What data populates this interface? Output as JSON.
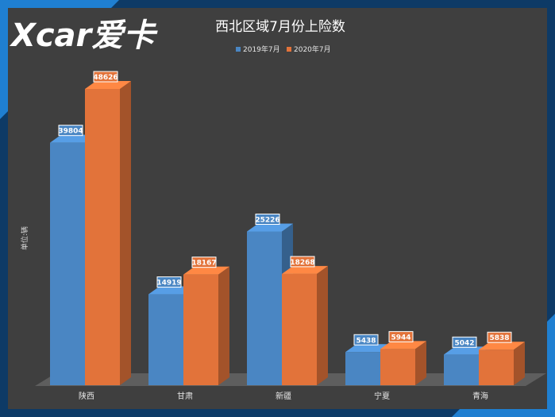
{
  "logo": {
    "text": "Xcar爱卡"
  },
  "chart_data": {
    "type": "bar",
    "title": "西北区域7月份上险数",
    "ylabel": "单位:辆",
    "xlabel": "",
    "categories": [
      "陕西",
      "甘肃",
      "新疆",
      "宁夏",
      "青海"
    ],
    "series": [
      {
        "name": "2019年7月",
        "color": "#4a86c3",
        "values": [
          39804,
          14919,
          25226,
          5438,
          5042
        ]
      },
      {
        "name": "2020年7月",
        "color": "#e2733a",
        "values": [
          48626,
          18167,
          18268,
          5944,
          5838
        ]
      }
    ],
    "ylim": [
      0,
      52000
    ],
    "grid": false,
    "legend": "top-center",
    "style": "3d-column"
  }
}
